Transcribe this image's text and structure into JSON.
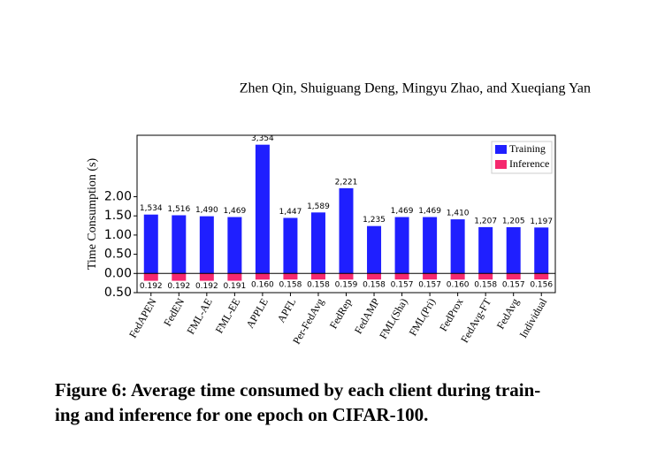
{
  "header": "Zhen Qin, Shuiguang Deng, Mingyu Zhao, and Xueqiang Yan",
  "chart_data": {
    "type": "bar",
    "ylabel": "Time Consumption (s)",
    "categories": [
      "FedAPEN",
      "FedEN",
      "FML-AE",
      "FML-EE",
      "APPLE",
      "APFL",
      "Per-FedAvg",
      "FedRep",
      "FedAMP",
      "FML(Sha)",
      "FML(Pri)",
      "FedProx",
      "FedAvg-FT",
      "FedAvg",
      "Individual"
    ],
    "series": [
      {
        "name": "Training",
        "color": "#1f1fff",
        "values": [
          1.534,
          1.516,
          1.49,
          1.469,
          3.354,
          1.447,
          1.589,
          2.221,
          1.235,
          1.469,
          1.469,
          1.41,
          1.207,
          1.205,
          1.197
        ],
        "value_labels": [
          "1,534",
          "1,516",
          "1,490",
          "1,469",
          "3,354",
          "1,447",
          "1,589",
          "2,221",
          "1,235",
          "1,469",
          "1,469",
          "1,410",
          "1,207",
          "1,205",
          "1,197"
        ]
      },
      {
        "name": "Inference",
        "color": "#f5286e",
        "values": [
          -0.192,
          -0.192,
          -0.192,
          -0.191,
          -0.16,
          -0.158,
          -0.158,
          -0.159,
          -0.158,
          -0.157,
          -0.157,
          -0.16,
          -0.158,
          -0.157,
          -0.156
        ],
        "value_labels": [
          "0.192",
          "0.192",
          "0.192",
          "0.191",
          "0.160",
          "0.158",
          "0.158",
          "0.159",
          "0.158",
          "0.157",
          "0.157",
          "0.160",
          "0.158",
          "0.157",
          "0.156"
        ]
      }
    ],
    "ylim": [
      -0.5,
      3.6
    ],
    "yticks": [
      {
        "value": -0.5,
        "label": "0.50"
      },
      {
        "value": 0,
        "label": "0.00"
      },
      {
        "value": 0.5,
        "label": "0.50"
      },
      {
        "value": 1,
        "label": "1.00"
      },
      {
        "value": 1.5,
        "label": "1.50"
      },
      {
        "value": 2,
        "label": "2.00"
      }
    ],
    "legend": "upper right",
    "grid": false
  },
  "caption": [
    "Figure 6: Average time consumed by each client during train-",
    "ing and inference for one epoch on CIFAR-100."
  ]
}
